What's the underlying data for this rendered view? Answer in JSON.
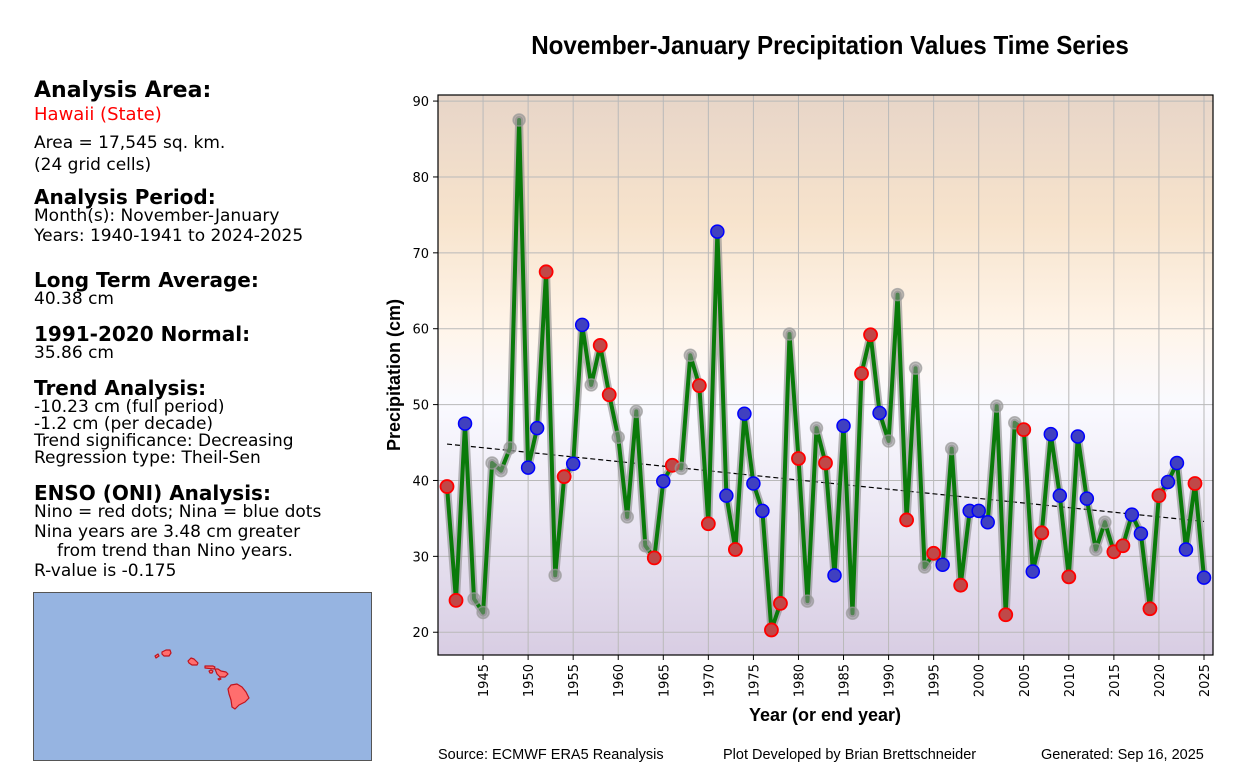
{
  "left_panel": {
    "area_header": "Analysis Area:",
    "area_name": "Hawaii (State)",
    "area_size": "Area = 17,545 sq. km.",
    "grid_cells": "(24 grid cells)",
    "period_header": "Analysis Period:",
    "months": "Month(s): November-January",
    "years": "Years: 1940-1941 to 2024-2025",
    "lta_header": "Long Term Average:",
    "lta_value": "40.38 cm",
    "normal_header": "1991-2020 Normal:",
    "normal_value": "35.86 cm",
    "trend_header": "Trend Analysis:",
    "trend_full": "-10.23 cm (full period)",
    "trend_decade": "-1.2 cm (per decade)",
    "trend_sig": "Trend significance: Decreasing",
    "regression": "Regression type: Theil-Sen",
    "enso_header": "ENSO (ONI) Analysis:",
    "enso_legend": "Nino = red dots; Nina = blue dots",
    "enso_line1": "Nina years are 3.48 cm greater",
    "enso_line2": "from trend than Nino years.",
    "enso_r": "R-value is -0.175"
  },
  "footer": {
    "source": "Source: ECMWF ERA5 Reanalysis",
    "developer": "Plot Developed by Brian Brettschneider",
    "generated": "Generated: Sep 16, 2025"
  },
  "colors": {
    "line": "#0a7a0a",
    "nino": "#ff0000",
    "nina": "#0000ff",
    "neutral": "#999999",
    "map_ocean": "#96b4e1",
    "map_land": "#ff6e6e"
  },
  "chart_data": {
    "type": "line",
    "title": "November-January Precipitation Values Time Series",
    "xlabel": "Year (or end year)",
    "ylabel": "Precipitation (cm)",
    "xlim": [
      1940,
      2026
    ],
    "ylim": [
      17,
      90.8
    ],
    "xticks": [
      1945,
      1950,
      1955,
      1960,
      1965,
      1970,
      1975,
      1980,
      1985,
      1990,
      1995,
      2000,
      2005,
      2010,
      2015,
      2020,
      2025
    ],
    "yticks": [
      20,
      30,
      40,
      50,
      60,
      70,
      80,
      90
    ],
    "grid": true,
    "trend": {
      "x": [
        1941,
        2025
      ],
      "y": [
        44.8,
        34.6
      ],
      "style": "dashed"
    },
    "enso_legend": {
      "nino": "red",
      "nina": "blue",
      "neutral": "gray"
    },
    "x": [
      1941,
      1942,
      1943,
      1944,
      1945,
      1946,
      1947,
      1948,
      1949,
      1950,
      1951,
      1952,
      1953,
      1954,
      1955,
      1956,
      1957,
      1958,
      1959,
      1960,
      1961,
      1962,
      1963,
      1964,
      1965,
      1966,
      1967,
      1968,
      1969,
      1970,
      1971,
      1972,
      1973,
      1974,
      1975,
      1976,
      1977,
      1978,
      1979,
      1980,
      1981,
      1982,
      1983,
      1984,
      1985,
      1986,
      1987,
      1988,
      1989,
      1990,
      1991,
      1992,
      1993,
      1994,
      1995,
      1996,
      1997,
      1998,
      1999,
      2000,
      2001,
      2002,
      2003,
      2004,
      2005,
      2006,
      2007,
      2008,
      2009,
      2010,
      2011,
      2012,
      2013,
      2014,
      2015,
      2016,
      2017,
      2018,
      2019,
      2020,
      2021,
      2022,
      2023,
      2024,
      2025
    ],
    "values": [
      39.2,
      24.2,
      47.5,
      24.4,
      22.6,
      42.3,
      41.3,
      44.3,
      87.5,
      41.7,
      46.9,
      67.5,
      27.5,
      40.5,
      42.2,
      60.5,
      52.6,
      57.8,
      51.3,
      45.7,
      35.2,
      49.1,
      31.4,
      29.8,
      39.9,
      42.0,
      41.6,
      56.5,
      52.5,
      34.3,
      72.8,
      38.0,
      30.9,
      48.8,
      39.6,
      36.0,
      20.3,
      23.8,
      59.3,
      42.9,
      24.1,
      46.9,
      42.3,
      27.5,
      47.2,
      22.5,
      54.1,
      59.2,
      48.9,
      45.2,
      64.5,
      34.8,
      54.8,
      28.6,
      30.4,
      28.9,
      44.2,
      26.2,
      36.0,
      36.0,
      34.5,
      49.8,
      22.3,
      47.6,
      46.7,
      28.0,
      33.1,
      46.1,
      38.0,
      27.3,
      45.8,
      37.6,
      30.9,
      34.5,
      30.6,
      31.4,
      35.5,
      33.0,
      23.1,
      38.0,
      39.8,
      42.3,
      30.9,
      39.6,
      27.2
    ],
    "enso": [
      "nino",
      "nino",
      "nina",
      "neutral",
      "neutral",
      "neutral",
      "neutral",
      "neutral",
      "neutral",
      "nina",
      "nina",
      "nino",
      "neutral",
      "nino",
      "nina",
      "nina",
      "neutral",
      "nino",
      "nino",
      "neutral",
      "neutral",
      "neutral",
      "neutral",
      "nino",
      "nina",
      "nino",
      "neutral",
      "neutral",
      "nino",
      "nino",
      "nina",
      "nina",
      "nino",
      "nina",
      "nina",
      "nina",
      "nino",
      "nino",
      "neutral",
      "nino",
      "neutral",
      "neutral",
      "nino",
      "nina",
      "nina",
      "neutral",
      "nino",
      "nino",
      "nina",
      "neutral",
      "neutral",
      "nino",
      "neutral",
      "neutral",
      "nino",
      "nina",
      "neutral",
      "nino",
      "nina",
      "nina",
      "nina",
      "neutral",
      "nino",
      "neutral",
      "nino",
      "nina",
      "nino",
      "nina",
      "nina",
      "nino",
      "nina",
      "nina",
      "neutral",
      "neutral",
      "nino",
      "nino",
      "nina",
      "nina",
      "nino",
      "nino",
      "nina",
      "nina",
      "nina",
      "nino",
      "nina"
    ]
  }
}
